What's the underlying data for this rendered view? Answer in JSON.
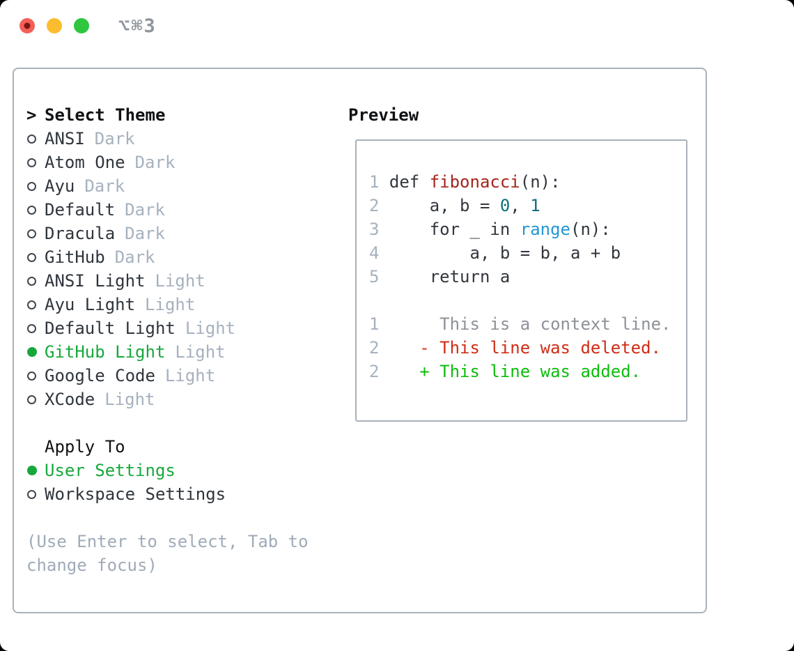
{
  "window": {
    "title": "⌥⌘3"
  },
  "theme_picker": {
    "marker": ">",
    "header": "Select Theme",
    "items": [
      {
        "label": "ANSI",
        "tag": "Dark",
        "selected": false
      },
      {
        "label": "Atom One",
        "tag": "Dark",
        "selected": false
      },
      {
        "label": "Ayu",
        "tag": "Dark",
        "selected": false
      },
      {
        "label": "Default",
        "tag": "Dark",
        "selected": false
      },
      {
        "label": "Dracula",
        "tag": "Dark",
        "selected": false
      },
      {
        "label": "GitHub",
        "tag": "Dark",
        "selected": false
      },
      {
        "label": "ANSI Light",
        "tag": "Light",
        "selected": false
      },
      {
        "label": "Ayu Light",
        "tag": "Light",
        "selected": false
      },
      {
        "label": "Default Light",
        "tag": "Light",
        "selected": false
      },
      {
        "label": "GitHub Light",
        "tag": "Light",
        "selected": true
      },
      {
        "label": "Google Code",
        "tag": "Light",
        "selected": false
      },
      {
        "label": "XCode",
        "tag": "Light",
        "selected": false
      }
    ],
    "apply_to": {
      "header": "Apply To",
      "options": [
        {
          "label": "User Settings",
          "selected": true
        },
        {
          "label": "Workspace Settings",
          "selected": false
        }
      ]
    },
    "hint_lines": [
      "(Use Enter to select, Tab to",
      "change focus)"
    ]
  },
  "preview": {
    "header": "Preview",
    "lines": [
      {
        "num": "1",
        "tokens": [
          {
            "t": " def ",
            "c": "code"
          },
          {
            "t": "fibonacci",
            "c": "func"
          },
          {
            "t": "(n):",
            "c": "code"
          }
        ]
      },
      {
        "num": "2",
        "tokens": [
          {
            "t": "     a, b = ",
            "c": "code"
          },
          {
            "t": "0",
            "c": "num"
          },
          {
            "t": ", ",
            "c": "code"
          },
          {
            "t": "1",
            "c": "num"
          }
        ]
      },
      {
        "num": "3",
        "tokens": [
          {
            "t": "     for _ in ",
            "c": "code"
          },
          {
            "t": "range",
            "c": "builtin"
          },
          {
            "t": "(n):",
            "c": "code"
          }
        ]
      },
      {
        "num": "4",
        "tokens": [
          {
            "t": "         a, b = b, a + b",
            "c": "code"
          }
        ]
      },
      {
        "num": "5",
        "tokens": [
          {
            "t": "     return a",
            "c": "code"
          }
        ]
      },
      {
        "num": "",
        "tokens": []
      },
      {
        "num": "1",
        "tokens": [
          {
            "t": "      This is a context line.",
            "c": "context"
          }
        ]
      },
      {
        "num": "2",
        "tokens": [
          {
            "t": "    - This line was deleted.",
            "c": "deleted"
          }
        ]
      },
      {
        "num": "2",
        "tokens": [
          {
            "t": "    + This line was added.",
            "c": "added"
          }
        ]
      }
    ]
  },
  "colors": {
    "accent_green": "#17a83c",
    "tag_gray": "#a6b1bf",
    "hint_gray": "#9fabb9",
    "text_dark": "#2f353c",
    "border_gray": "#a9b1bc",
    "func_red": "#a6231a",
    "number_teal": "#0c6f7a",
    "builtin_blue": "#2397d3",
    "context_gray": "#8d9298",
    "deleted_red": "#cf2d17",
    "added_green": "#0ebc0e",
    "line_number_gray": "#a6b1bf",
    "traffic_red": "#f45f58",
    "traffic_yellow": "#fcbc2f",
    "traffic_green": "#2ec63f",
    "title_gray": "#8e959d"
  }
}
